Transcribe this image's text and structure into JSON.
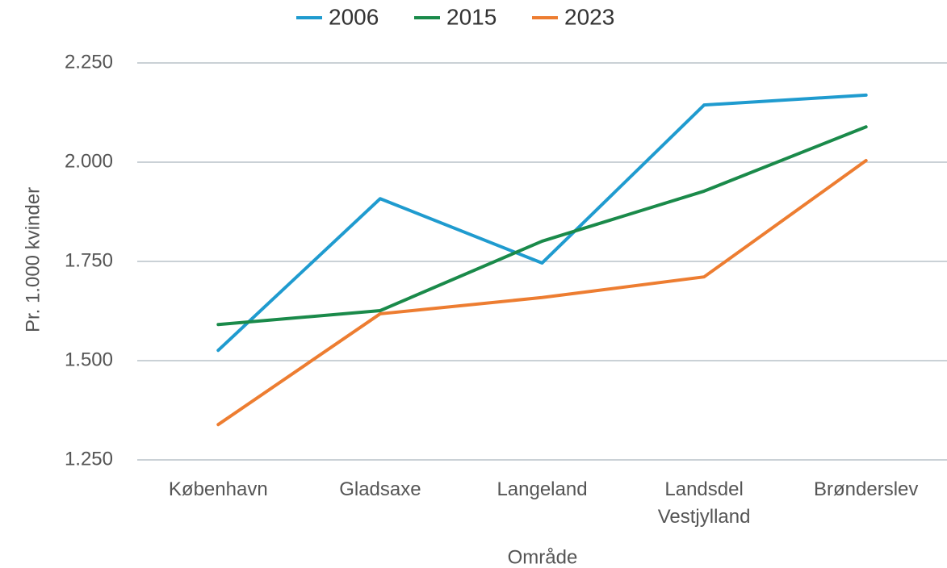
{
  "chart_data": {
    "type": "line",
    "x_label": "Område",
    "y_label": "Pr. 1.000 kvinder",
    "categories": [
      "København",
      "Gladsaxe",
      "Langeland",
      "Landsdel Vestjylland",
      "Brønderslev"
    ],
    "series": [
      {
        "name": "2006",
        "color": "#1f9bcf",
        "values": [
          1526,
          1908,
          1746,
          2144,
          2169
        ]
      },
      {
        "name": "2015",
        "color": "#1a8a4a",
        "values": [
          1591,
          1626,
          1801,
          1927,
          2089
        ]
      },
      {
        "name": "2023",
        "color": "#ed7d31",
        "values": [
          1339,
          1618,
          1659,
          1711,
          2004
        ]
      }
    ],
    "ylim": [
      1250,
      2250
    ],
    "yticks": [
      {
        "value": 1250,
        "label": "1.250"
      },
      {
        "value": 1500,
        "label": "1.500"
      },
      {
        "value": 1750,
        "label": "1.750"
      },
      {
        "value": 2000,
        "label": "2.000"
      },
      {
        "value": 2250,
        "label": "2.250"
      }
    ],
    "grid": true,
    "legend": "top"
  }
}
